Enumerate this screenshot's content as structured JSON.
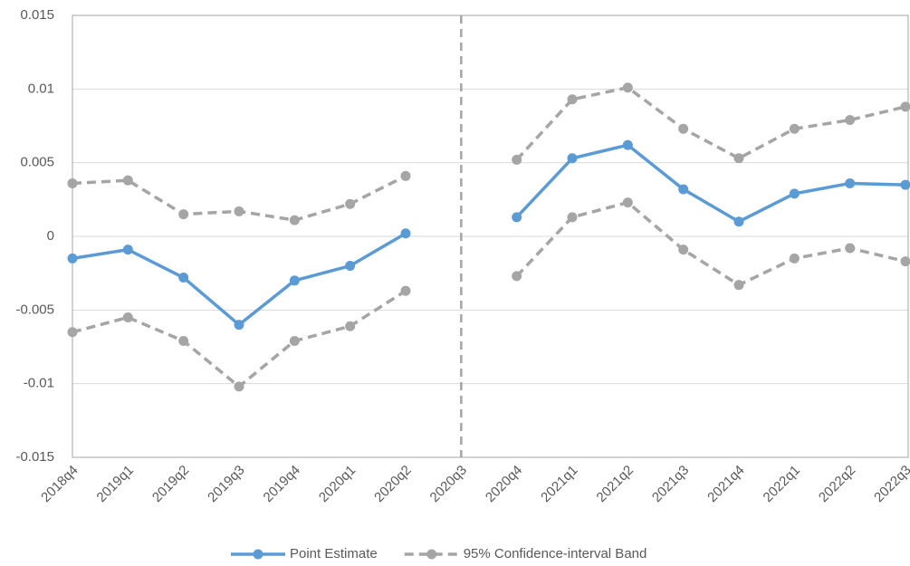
{
  "chart_data": {
    "type": "line",
    "categories": [
      "2018q4",
      "2019q1",
      "2019q2",
      "2019q3",
      "2019q4",
      "2020q1",
      "2020q2",
      "2020q3",
      "2020q4",
      "2021q1",
      "2021q2",
      "2021q3",
      "2021q4",
      "2022q1",
      "2022q2",
      "2022q3"
    ],
    "series": [
      {
        "name": "Point Estimate",
        "color": "#5b9bd5",
        "dashed": false,
        "values": [
          -0.0015,
          -0.0009,
          -0.0028,
          -0.006,
          -0.003,
          -0.002,
          0.0002,
          null,
          0.0013,
          0.0053,
          0.0062,
          0.0032,
          0.001,
          0.0029,
          0.0036,
          0.0035
        ]
      },
      {
        "name": "95% Confidence-interval Band",
        "color": "#a5a5a5",
        "dashed": true,
        "upper": [
          0.0036,
          0.0038,
          0.0015,
          0.0017,
          0.0011,
          0.0022,
          0.0041,
          null,
          0.0052,
          0.0093,
          0.0101,
          0.0073,
          0.0053,
          0.0073,
          0.0079,
          0.0088
        ],
        "lower": [
          -0.0065,
          -0.0055,
          -0.0071,
          -0.0102,
          -0.0071,
          -0.0061,
          -0.0037,
          null,
          -0.0027,
          0.0013,
          0.0023,
          -0.0009,
          -0.0033,
          -0.0015,
          -0.0008,
          -0.0017
        ]
      }
    ],
    "ylim": [
      -0.015,
      0.015
    ],
    "yticks": [
      -0.015,
      -0.01,
      -0.005,
      0,
      0.005,
      0.01,
      0.015
    ],
    "grid": true,
    "vline_category": 7,
    "legend": "bottom"
  }
}
